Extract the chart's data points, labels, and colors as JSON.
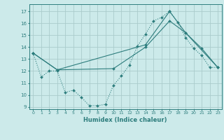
{
  "xlabel": "Humidex (Indice chaleur)",
  "bg_color": "#cceaea",
  "grid_color": "#aacccc",
  "line_color": "#2d7d7d",
  "xlim": [
    -0.5,
    23.5
  ],
  "ylim": [
    8.8,
    17.6
  ],
  "yticks": [
    9,
    10,
    11,
    12,
    13,
    14,
    15,
    16,
    17
  ],
  "xticks": [
    0,
    1,
    2,
    3,
    4,
    5,
    6,
    7,
    8,
    9,
    10,
    11,
    12,
    13,
    14,
    15,
    16,
    17,
    18,
    19,
    20,
    21,
    22,
    23
  ],
  "series1_x": [
    0,
    1,
    2,
    3,
    4,
    5,
    6,
    7,
    8,
    9,
    10,
    11,
    12,
    13,
    14,
    15,
    16,
    17,
    18,
    19,
    20,
    21,
    22,
    23
  ],
  "series1_y": [
    13.5,
    11.5,
    12.0,
    12.0,
    10.2,
    10.4,
    9.8,
    9.1,
    9.1,
    9.2,
    10.8,
    11.6,
    12.5,
    14.1,
    15.1,
    16.2,
    16.5,
    17.0,
    16.1,
    14.8,
    13.9,
    13.3,
    12.3,
    12.3
  ],
  "series2_x": [
    0,
    3,
    14,
    17,
    19,
    23
  ],
  "series2_y": [
    13.5,
    12.1,
    14.2,
    17.0,
    15.2,
    12.3
  ],
  "series3_x": [
    0,
    3,
    10,
    14,
    17,
    19,
    21,
    23
  ],
  "series3_y": [
    13.5,
    12.1,
    12.2,
    14.0,
    16.2,
    15.2,
    13.9,
    12.3
  ]
}
